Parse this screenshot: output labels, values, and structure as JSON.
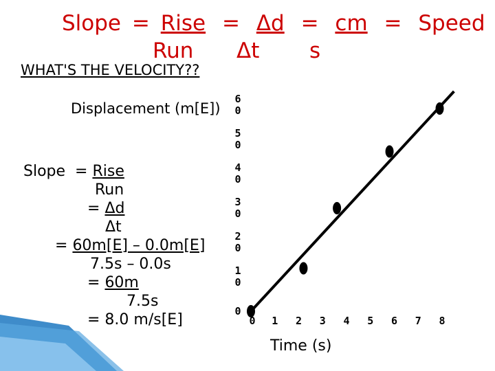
{
  "title": {
    "line1": {
      "slope": "Slope",
      "eq1": "=",
      "rise": "Rise",
      "eq2": "=",
      "delta_d": "Δd",
      "eq3": "=",
      "cm": "cm",
      "eq4": "=",
      "speed": "Speed"
    },
    "line2": {
      "run": "Run",
      "delta_t": "Δt",
      "s": "s"
    }
  },
  "question": "WHAT'S THE VELOCITY??",
  "work": {
    "l1_prefix": "Slope  = ",
    "l1_rise": "Rise",
    "l2": "Run",
    "l3_prefix": "= ",
    "l3_dd": "Δd",
    "l4": "Δt",
    "l5_prefix": "= ",
    "l5": "60m[E] – 0.0m[E]",
    "l6": "7.5s – 0.0s",
    "l7_prefix": "= ",
    "l7": "60m",
    "l8": "7.5s",
    "l9": "= 8.0 m/s[E]"
  },
  "colors": {
    "title": "#cc0000",
    "line": "#000000",
    "point": "#000000",
    "deco": "#1f6fb4"
  },
  "chart_data": {
    "type": "scatter",
    "ylabel": "Displacement (m[E])",
    "xlabel": "Time (s)",
    "x_ticks": [
      "0",
      "1",
      "2",
      "3",
      "4",
      "5",
      "6",
      "7",
      "8"
    ],
    "y_ticks": [
      "0",
      "1\n0",
      "2\n0",
      "3\n0",
      "4\n0",
      "5\n0",
      "6\n0"
    ],
    "xlim": [
      0,
      8
    ],
    "ylim": [
      0,
      60
    ],
    "points": [
      {
        "x": 0.0,
        "y": 0
      },
      {
        "x": 2.2,
        "y": 12.5
      },
      {
        "x": 3.6,
        "y": 30
      },
      {
        "x": 5.8,
        "y": 46.5
      },
      {
        "x": 7.9,
        "y": 59
      }
    ],
    "best_fit": {
      "x1": 0.0,
      "y1": 0,
      "x2": 8.5,
      "y2": 64
    },
    "grid": false,
    "legend": false
  }
}
